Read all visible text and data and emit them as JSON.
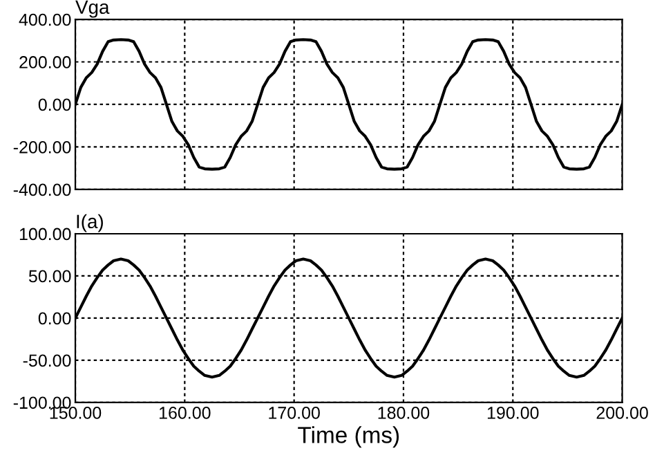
{
  "chart_data": [
    {
      "type": "line",
      "ylabel": "Vga",
      "x": [
        150,
        150.5,
        151,
        151.5,
        152,
        152.5,
        153,
        153.5,
        154.17,
        154.83,
        155.33,
        155.83,
        156.33,
        156.83,
        157.33,
        157.83,
        158.33,
        158.83,
        159.33,
        159.83,
        160.33,
        160.83,
        161.33,
        161.83,
        162.5,
        163.16,
        163.66,
        164.16,
        164.66,
        165.16,
        165.66,
        166.16,
        166.67,
        167.17,
        167.67,
        168.17,
        168.67,
        169.17,
        169.67,
        170.17,
        170.84,
        171.5,
        172,
        172.5,
        173,
        173.5,
        174,
        174.5,
        175,
        175.5,
        176,
        176.5,
        177,
        177.5,
        178,
        178.5,
        179.17,
        179.83,
        180.33,
        180.83,
        181.33,
        181.83,
        182.33,
        182.83,
        183.33,
        183.83,
        184.33,
        184.83,
        185.33,
        185.83,
        186.33,
        186.83,
        187.5,
        188.16,
        188.66,
        189.16,
        189.66,
        190.16,
        190.66,
        191.16,
        191.66,
        192.16,
        192.66,
        193.16,
        193.66,
        194.16,
        194.66,
        195.16,
        195.83,
        196.49,
        196.99,
        197.49,
        197.99,
        198.49,
        198.99,
        199.49,
        200
      ],
      "series": [
        {
          "color": "#000000",
          "values": [
            0,
            80,
            125,
            150,
            190,
            250,
            295,
            303,
            305,
            303,
            295,
            250,
            190,
            150,
            125,
            80,
            0,
            -80,
            -125,
            -150,
            -190,
            -250,
            -295,
            -303,
            -305,
            -303,
            -295,
            -250,
            -190,
            -150,
            -125,
            -80,
            0,
            80,
            125,
            150,
            190,
            250,
            295,
            303,
            305,
            303,
            295,
            250,
            190,
            150,
            125,
            80,
            0,
            -80,
            -125,
            -150,
            -190,
            -250,
            -295,
            -303,
            -305,
            -303,
            -295,
            -250,
            -190,
            -150,
            -125,
            -80,
            0,
            80,
            125,
            150,
            190,
            250,
            295,
            303,
            305,
            303,
            295,
            250,
            190,
            150,
            125,
            80,
            0,
            -80,
            -125,
            -150,
            -190,
            -250,
            -295,
            -303,
            -305,
            -303,
            -295,
            -250,
            -190,
            -150,
            -125,
            -80,
            0
          ]
        }
      ],
      "xlim": [
        150,
        200
      ],
      "xticks": [
        150,
        160,
        170,
        180,
        190,
        200
      ],
      "ylim": [
        -400,
        400
      ],
      "yticks": [
        {
          "value": -400,
          "label": "-400.00"
        },
        {
          "value": -200,
          "label": "-200.00"
        },
        {
          "value": 0,
          "label": "0.00"
        },
        {
          "value": 200,
          "label": "200.00"
        },
        {
          "value": 400,
          "label": "400.00"
        }
      ],
      "tick_labels": "y",
      "grid": true,
      "line_style": "solid"
    },
    {
      "type": "line",
      "ylabel": "I(a)",
      "xlabel": "Time (ms)",
      "x": [
        150,
        150.5,
        151,
        151.5,
        152,
        152.5,
        153,
        153.5,
        154.17,
        154.83,
        155.33,
        155.83,
        156.33,
        156.83,
        157.33,
        157.83,
        158.33,
        158.83,
        159.33,
        159.83,
        160.33,
        160.83,
        161.33,
        161.83,
        162.5,
        163.16,
        163.66,
        164.16,
        164.66,
        165.16,
        165.66,
        166.16,
        166.67,
        167.17,
        167.67,
        168.17,
        168.67,
        169.17,
        169.67,
        170.17,
        170.84,
        171.5,
        172,
        172.5,
        173,
        173.5,
        174,
        174.5,
        175,
        175.5,
        176,
        176.5,
        177,
        177.5,
        178,
        178.5,
        179.17,
        179.83,
        180.33,
        180.83,
        181.33,
        181.83,
        182.33,
        182.83,
        183.33,
        183.83,
        184.33,
        184.83,
        185.33,
        185.83,
        186.33,
        186.83,
        187.5,
        188.16,
        188.66,
        189.16,
        189.66,
        190.16,
        190.66,
        191.16,
        191.66,
        192.16,
        192.66,
        193.16,
        193.66,
        194.16,
        194.66,
        195.16,
        195.83,
        196.49,
        196.99,
        197.49,
        197.99,
        198.49,
        198.99,
        199.49,
        200
      ],
      "series": [
        {
          "color": "#000000",
          "values": [
            0,
            13,
            26,
            38,
            48,
            57,
            63,
            68,
            70,
            68,
            63,
            57,
            48,
            38,
            26,
            13,
            0,
            -13,
            -26,
            -38,
            -48,
            -57,
            -63,
            -68,
            -70,
            -68,
            -63,
            -57,
            -48,
            -38,
            -26,
            -13,
            0,
            13,
            26,
            38,
            48,
            57,
            63,
            68,
            70,
            68,
            63,
            57,
            48,
            38,
            26,
            13,
            0,
            -13,
            -26,
            -38,
            -48,
            -57,
            -63,
            -68,
            -70,
            -68,
            -63,
            -57,
            -48,
            -38,
            -26,
            -13,
            0,
            13,
            26,
            38,
            48,
            57,
            63,
            68,
            70,
            68,
            63,
            57,
            48,
            38,
            26,
            13,
            0,
            -13,
            -26,
            -38,
            -48,
            -57,
            -63,
            -68,
            -70,
            -68,
            -63,
            -57,
            -48,
            -38,
            -26,
            -13,
            0
          ]
        }
      ],
      "xlim": [
        150,
        200
      ],
      "xticks": [
        {
          "value": 150,
          "label": "150.00"
        },
        {
          "value": 160,
          "label": "160.00"
        },
        {
          "value": 170,
          "label": "170.00"
        },
        {
          "value": 180,
          "label": "180.00"
        },
        {
          "value": 190,
          "label": "190.00"
        },
        {
          "value": 200,
          "label": "200.00"
        }
      ],
      "ylim": [
        -100,
        100
      ],
      "yticks": [
        {
          "value": -100,
          "label": "-100.00"
        },
        {
          "value": -50,
          "label": "-50.00"
        },
        {
          "value": 0,
          "label": "0.00"
        },
        {
          "value": 50,
          "label": "50.00"
        },
        {
          "value": 100,
          "label": "100.00"
        }
      ],
      "grid": true,
      "line_style": "solid"
    }
  ]
}
